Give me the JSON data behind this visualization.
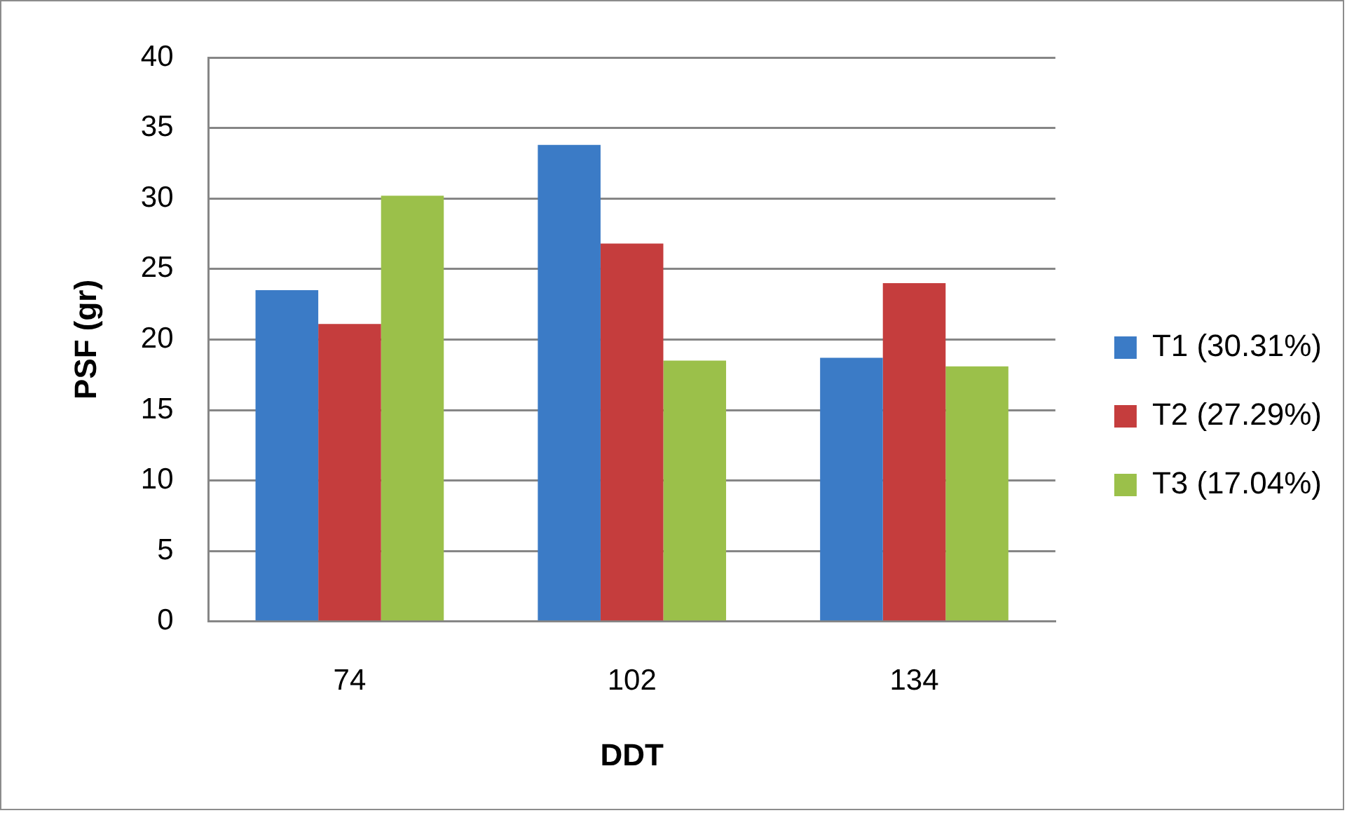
{
  "chart_data": {
    "type": "bar",
    "xlabel": "DDT",
    "ylabel": "PSF (gr)",
    "categories": [
      "74",
      "102",
      "134"
    ],
    "series": [
      {
        "name": "T1 (30.31%)",
        "color": "#3b7bc6",
        "values": [
          23.5,
          33.8,
          18.7
        ]
      },
      {
        "name": "T2 (27.29%)",
        "color": "#c53d3d",
        "values": [
          21.1,
          26.8,
          24.0
        ]
      },
      {
        "name": "T3 (17.04%)",
        "color": "#9bc04a",
        "values": [
          30.2,
          18.5,
          18.1
        ]
      }
    ],
    "ylim": [
      0,
      40
    ],
    "yticks": [
      0,
      5,
      10,
      15,
      20,
      25,
      30,
      35,
      40
    ],
    "grid": "y",
    "legend": "right"
  }
}
